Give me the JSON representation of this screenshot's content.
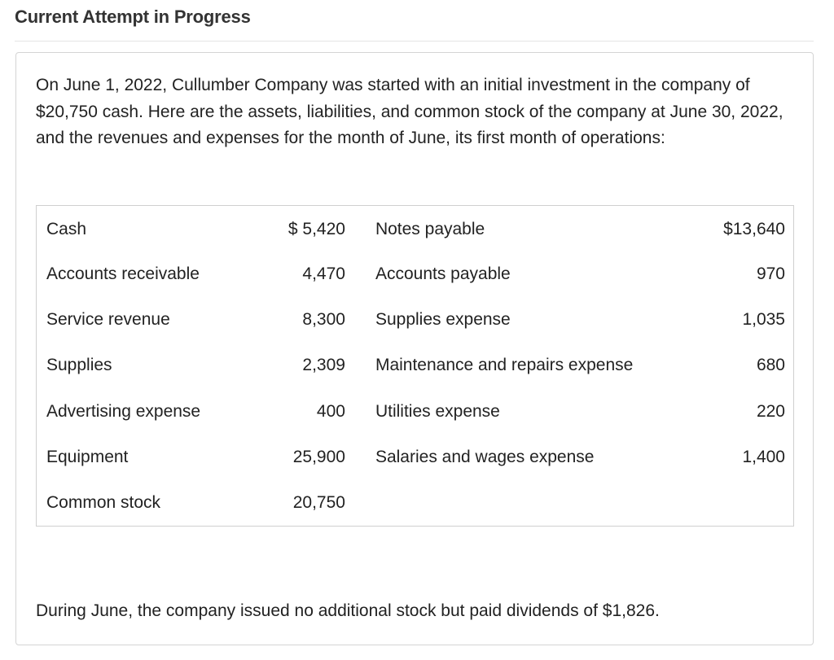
{
  "header": {
    "title": "Current Attempt in Progress"
  },
  "question": {
    "intro": "On June 1, 2022, Cullumber Company was started with an initial investment in the company of $20,750 cash. Here are the assets, liabilities, and common stock of the company at June 30, 2022, and the revenues and expenses for the month of June, its first month of operations:",
    "rows": [
      {
        "left_label": "Cash",
        "left_value": "$ 5,420",
        "right_label": "Notes payable",
        "right_value": "$13,640"
      },
      {
        "left_label": "Accounts receivable",
        "left_value": "4,470",
        "right_label": "Accounts payable",
        "right_value": "970"
      },
      {
        "left_label": "Service revenue",
        "left_value": "8,300",
        "right_label": "Supplies expense",
        "right_value": "1,035"
      },
      {
        "left_label": "Supplies",
        "left_value": "2,309",
        "right_label": "Maintenance and repairs expense",
        "right_value": "680"
      },
      {
        "left_label": "Advertising expense",
        "left_value": "400",
        "right_label": "Utilities expense",
        "right_value": "220"
      },
      {
        "left_label": "Equipment",
        "left_value": "25,900",
        "right_label": "Salaries and wages expense",
        "right_value": "1,400"
      },
      {
        "left_label": "Common stock",
        "left_value": "20,750",
        "right_label": "",
        "right_value": ""
      }
    ],
    "closing": "During June, the company issued no additional stock but paid dividends of $1,826."
  }
}
